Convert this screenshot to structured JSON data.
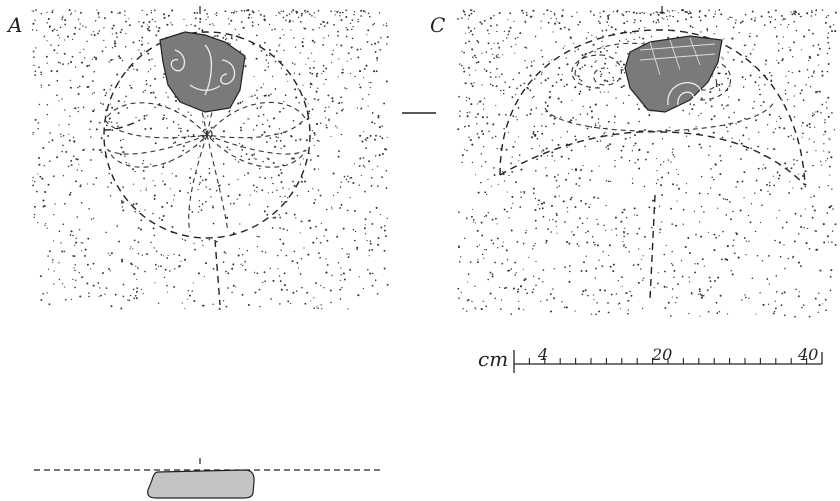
{
  "panels": {
    "a": {
      "label": "A"
    },
    "c": {
      "label": "C"
    }
  },
  "scale_bar": {
    "unit": "cm",
    "ticks": [
      "4",
      "20",
      "40"
    ]
  },
  "colors": {
    "ink": "#222222",
    "fragment": "#7a7a7a",
    "section_fill": "#c4c4c4"
  }
}
